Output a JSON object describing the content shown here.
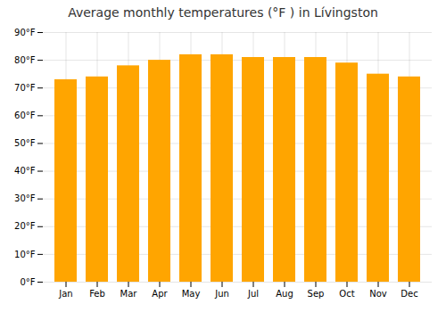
{
  "chart_data": {
    "type": "bar",
    "title": "Average monthly temperatures (°F ) in Lívingston",
    "categories": [
      "Jan",
      "Feb",
      "Mar",
      "Apr",
      "May",
      "Jun",
      "Jul",
      "Aug",
      "Sep",
      "Oct",
      "Nov",
      "Dec"
    ],
    "values": [
      73,
      74,
      78,
      80,
      82,
      82,
      81,
      81,
      81,
      79,
      75,
      74
    ],
    "color": "#FFA500",
    "ylim": [
      0,
      90
    ],
    "yticks": [
      {
        "value": 0,
        "label": "0°F"
      },
      {
        "value": 10,
        "label": "10°F"
      },
      {
        "value": 20,
        "label": "20°F"
      },
      {
        "value": 30,
        "label": "30°F"
      },
      {
        "value": 40,
        "label": "40°F"
      },
      {
        "value": 50,
        "label": "50°F"
      },
      {
        "value": 60,
        "label": "60°F"
      },
      {
        "value": 70,
        "label": "70°F"
      },
      {
        "value": 80,
        "label": "80°F"
      },
      {
        "value": 90,
        "label": "90°F"
      }
    ],
    "grid": true
  }
}
